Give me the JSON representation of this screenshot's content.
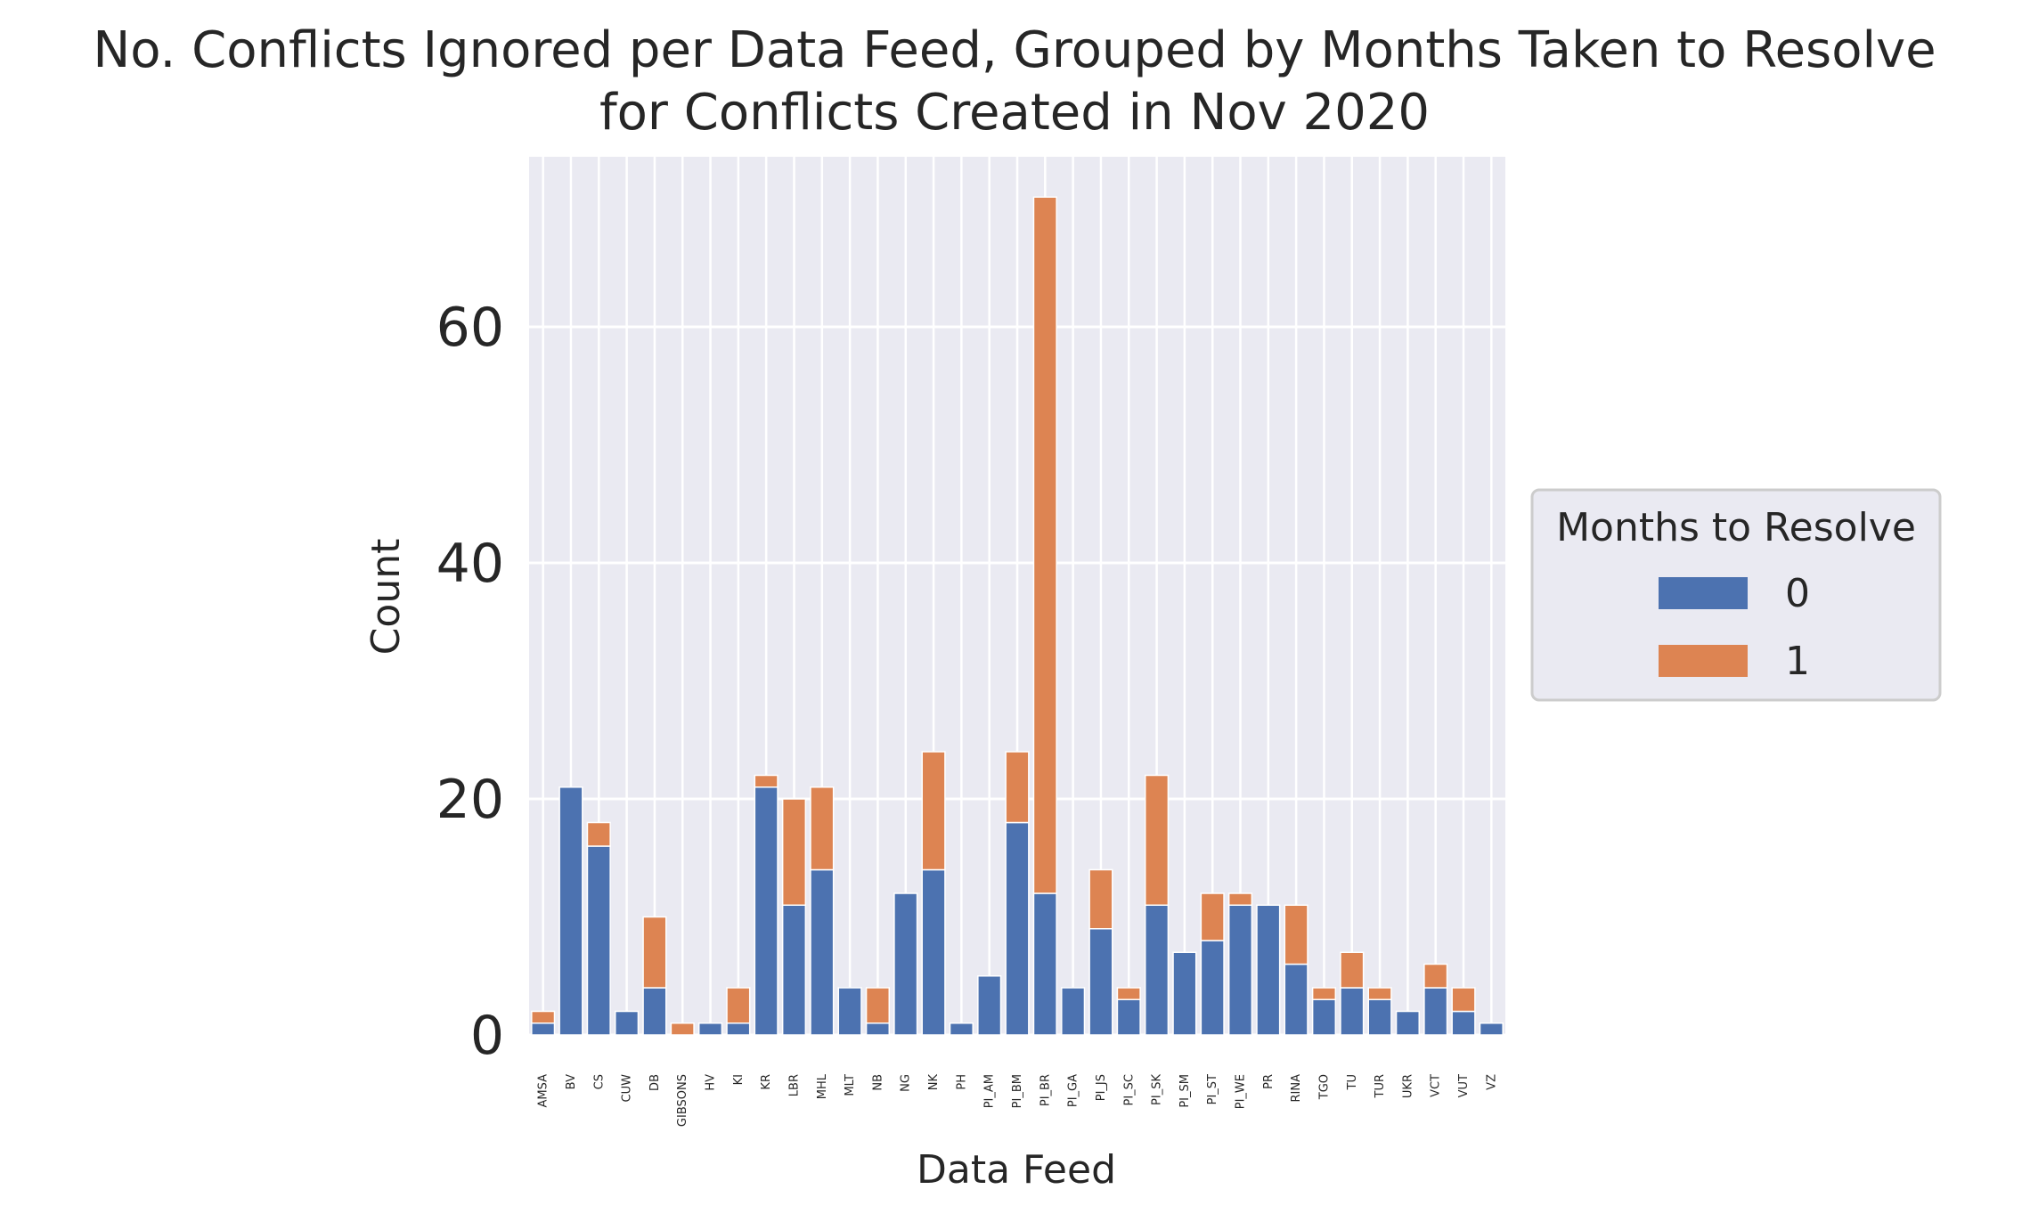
{
  "chart_data": {
    "type": "bar",
    "stacked": true,
    "title": "No. Conflicts Ignored per Data Feed, Grouped by Months Taken to Resolve",
    "subtitle": "for Conflicts Created in Nov 2020",
    "xlabel": "Data Feed",
    "ylabel": "Count",
    "ylim": [
      0,
      74
    ],
    "yticks": [
      0,
      20,
      40,
      60
    ],
    "grid": true,
    "legend_placement": "right",
    "legend_title": "Months to Resolve",
    "categories": [
      "AMSA",
      "BV",
      "CS",
      "CUW",
      "DB",
      "GIBSONS",
      "HV",
      "KI",
      "KR",
      "LBR",
      "MHL",
      "MLT",
      "NB",
      "NG",
      "NK",
      "PH",
      "PI_AM",
      "PI_BM",
      "PI_BR",
      "PI_GA",
      "PI_JS",
      "PI_SC",
      "PI_SK",
      "PI_SM",
      "PI_ST",
      "PI_WE",
      "PR",
      "RINA",
      "TGO",
      "TU",
      "TUR",
      "UKR",
      "VCT",
      "VUT",
      "VZ"
    ],
    "series": [
      {
        "name": "0",
        "color": "#4c72b0",
        "values": [
          1,
          21,
          16,
          2,
          4,
          0,
          1,
          1,
          21,
          11,
          14,
          4,
          1,
          12,
          14,
          1,
          5,
          18,
          12,
          4,
          9,
          3,
          11,
          7,
          8,
          11,
          11,
          6,
          3,
          4,
          3,
          2,
          4,
          2,
          1
        ]
      },
      {
        "name": "1",
        "color": "#dd8452",
        "values": [
          1,
          0,
          2,
          0,
          6,
          1,
          0,
          3,
          1,
          9,
          7,
          0,
          3,
          0,
          10,
          0,
          0,
          6,
          59,
          0,
          5,
          1,
          11,
          0,
          4,
          1,
          0,
          5,
          1,
          3,
          1,
          0,
          2,
          2,
          0
        ]
      }
    ],
    "colors": {
      "plot_background": "#eaeaf2",
      "grid": "#ffffff",
      "text": "#262626"
    }
  }
}
